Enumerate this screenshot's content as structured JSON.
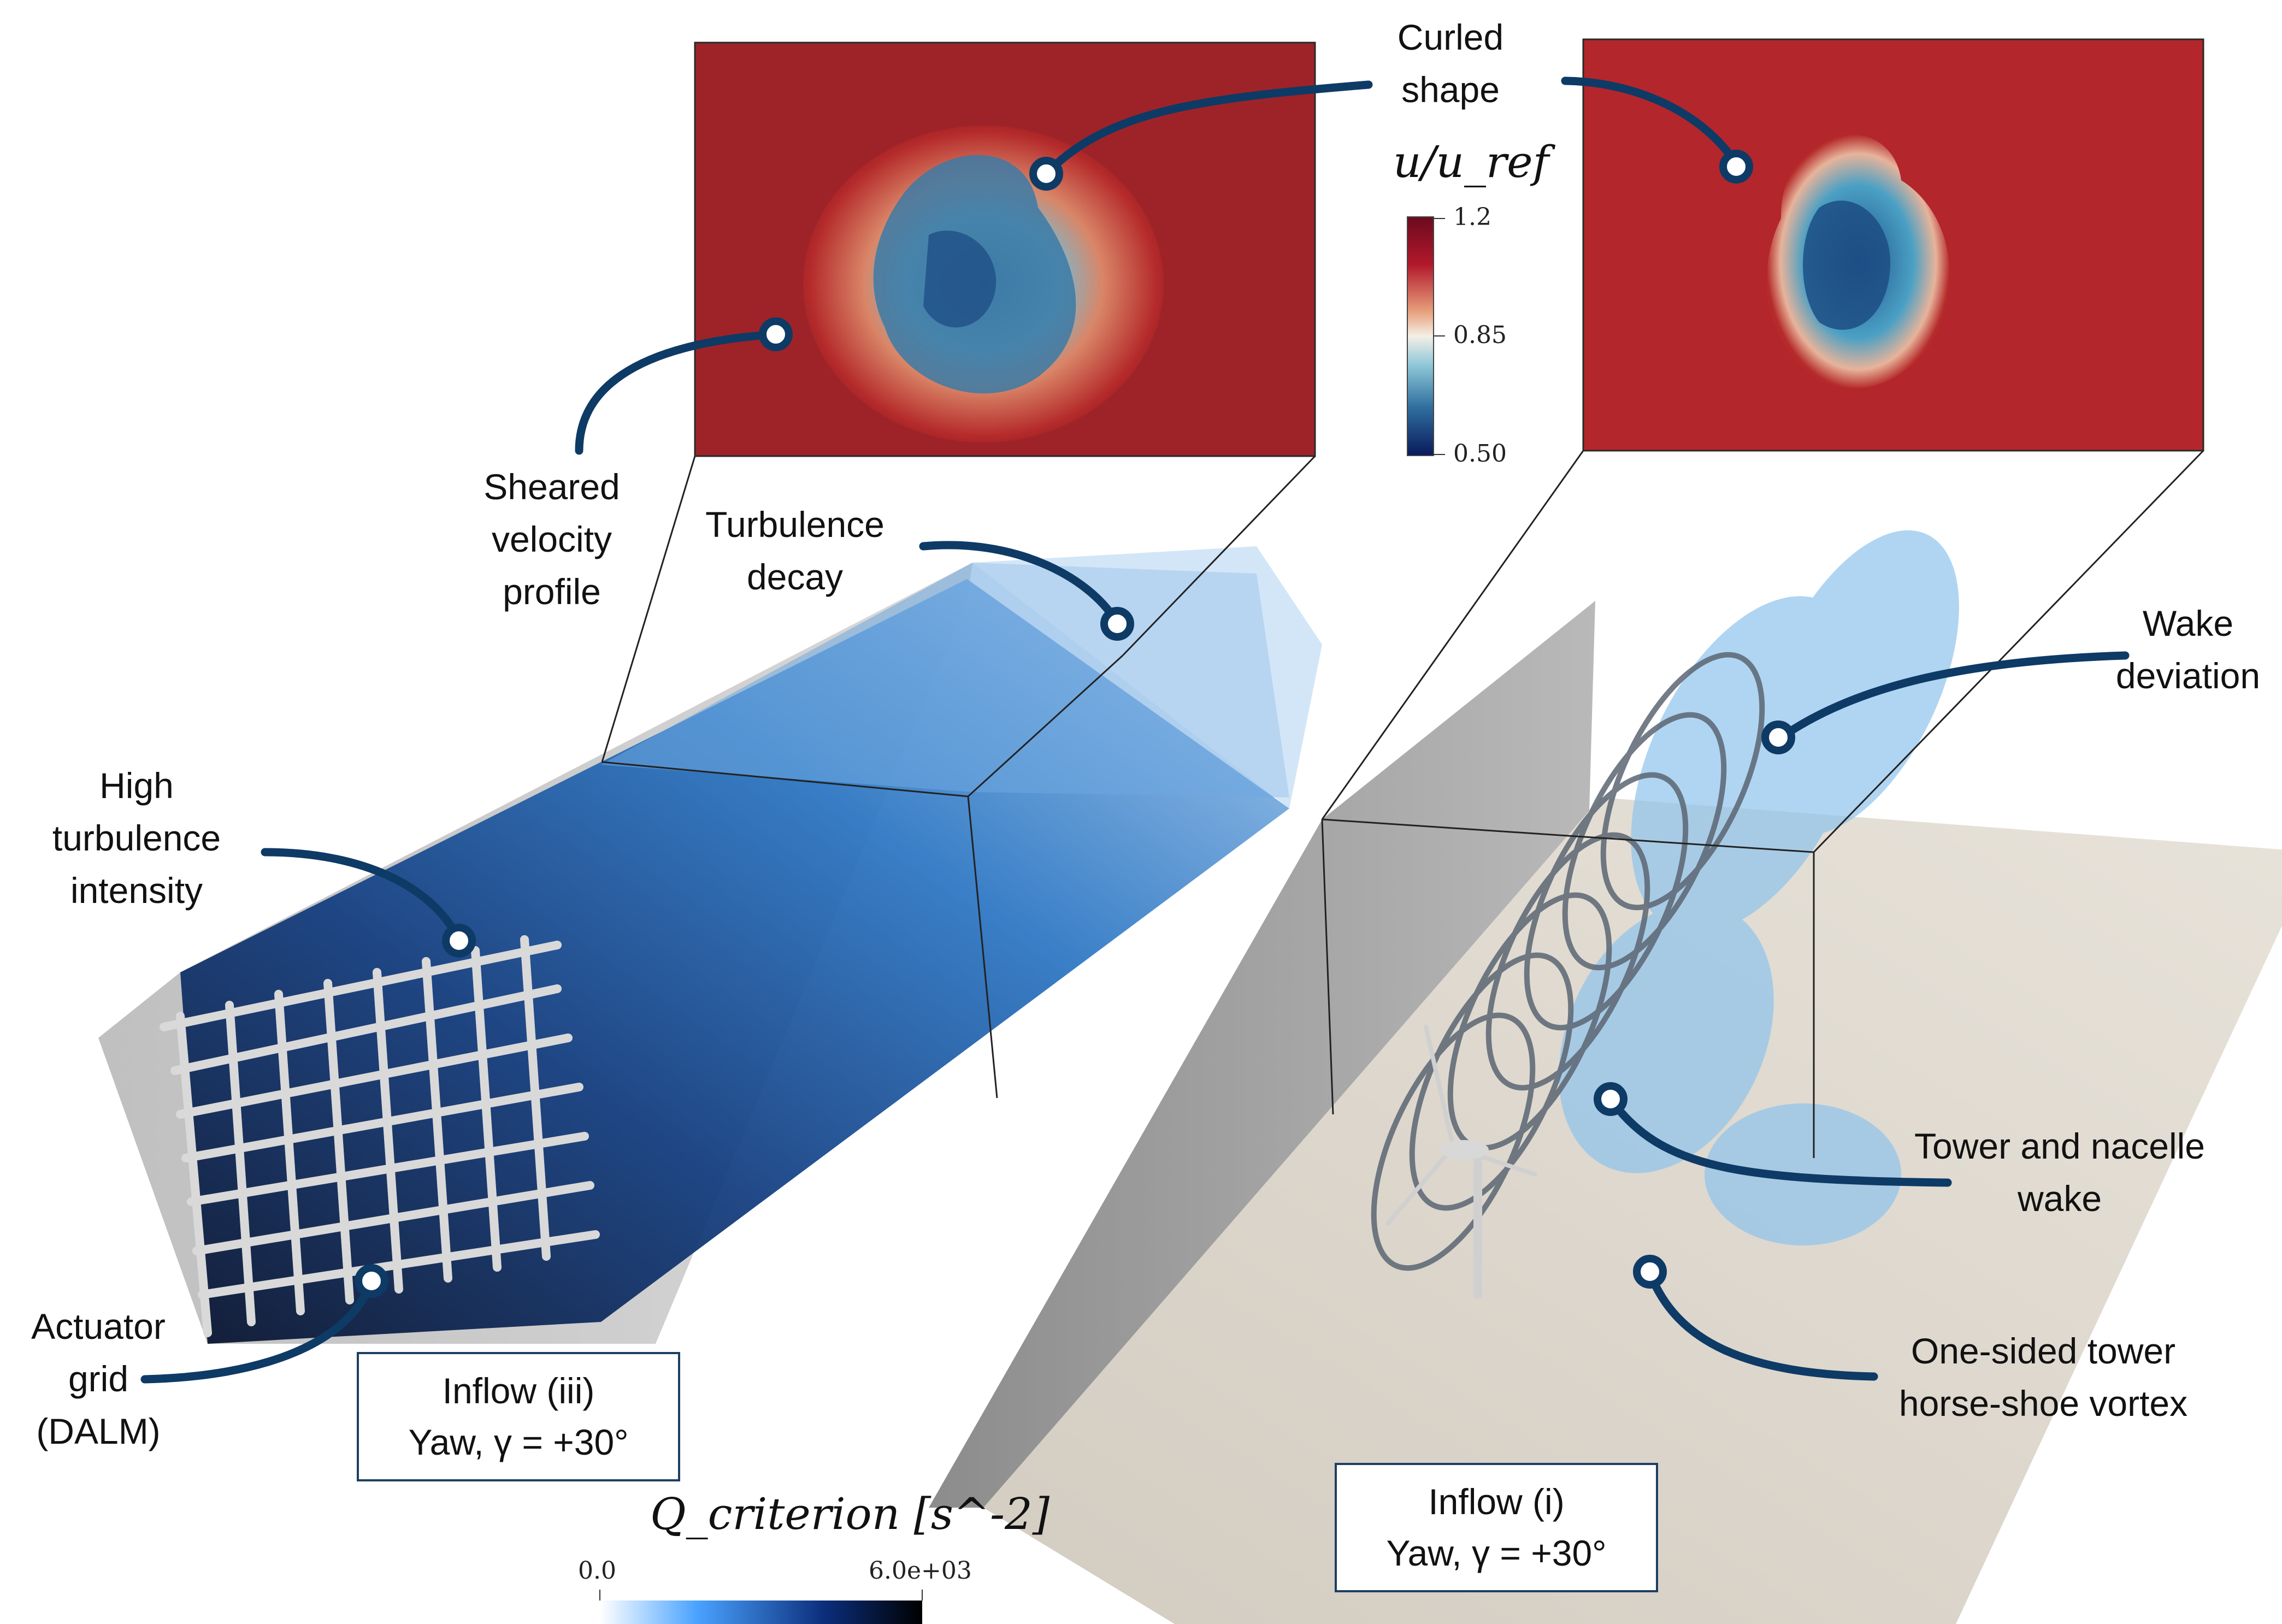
{
  "callouts": {
    "curled_shape": [
      "Curled",
      "shape"
    ],
    "sheared_velocity_profile": [
      "Sheared",
      "velocity",
      "profile"
    ],
    "turbulence_decay": [
      "Turbulence",
      "decay"
    ],
    "wake_deviation": [
      "Wake",
      "deviation"
    ],
    "high_turbulence_intensity": [
      "High",
      "turbulence",
      "intensity"
    ],
    "actuator_grid": [
      "Actuator",
      "grid",
      "(DALM)"
    ],
    "tower_nacelle_wake": [
      "Tower and nacelle",
      "wake"
    ],
    "horse_shoe_vortex": [
      "One-sided tower",
      "horse-shoe vortex"
    ]
  },
  "case_labels": {
    "left": {
      "line1": "Inflow (iii)",
      "line2": "Yaw, γ = +30°"
    },
    "right": {
      "line1": "Inflow (i)",
      "line2": "Yaw, γ = +30°"
    }
  },
  "velocity_colorbar": {
    "title": "u/u_ref",
    "ticks": [
      "1.2",
      "0.85",
      "0.50"
    ],
    "colors": [
      "#6b0a1e",
      "#b2182b",
      "#e8a27e",
      "#f4efe6",
      "#8fc8d8",
      "#2e6e9e",
      "#0a1a5c"
    ]
  },
  "q_colorbar": {
    "title": "Q_criterion [s^-2]",
    "min": "0.0",
    "max": "6.0e+03",
    "colors": [
      "#ffffff",
      "#4aa3ff",
      "#0b2d7a",
      "#000000"
    ]
  },
  "colors": {
    "callout_line": "#0e3a66",
    "slice_red": "#b52b2b",
    "slice_dark_red": "#7a0f1c",
    "wake_blue": "#2f78c4",
    "wall_gray": "#9a9a9a",
    "floor_beige": "#dcd6cc"
  }
}
